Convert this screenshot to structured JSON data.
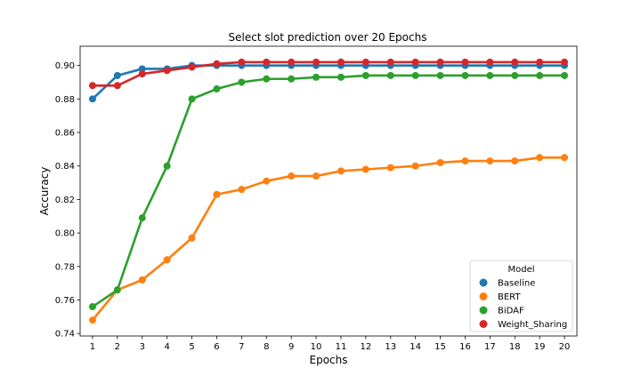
{
  "chart_data": {
    "type": "line",
    "title": "Select slot prediction over 20 Epochs",
    "xlabel": "Epochs",
    "ylabel": "Accuracy",
    "x": [
      1,
      2,
      3,
      4,
      5,
      6,
      7,
      8,
      9,
      10,
      11,
      12,
      13,
      14,
      15,
      16,
      17,
      18,
      19,
      20
    ],
    "xticks": [
      "1",
      "2",
      "3",
      "4",
      "5",
      "6",
      "7",
      "8",
      "9",
      "10",
      "11",
      "12",
      "13",
      "14",
      "15",
      "16",
      "17",
      "18",
      "19",
      "20"
    ],
    "ylim": [
      0.7385,
      0.9115
    ],
    "yticks": [
      0.74,
      0.76,
      0.78,
      0.8,
      0.82,
      0.84,
      0.86,
      0.88,
      0.9
    ],
    "ytick_labels": [
      "0.74",
      "0.76",
      "0.78",
      "0.80",
      "0.82",
      "0.84",
      "0.86",
      "0.88",
      "0.90"
    ],
    "grid": false,
    "legend": {
      "title": "Model",
      "placement": "bottom-right"
    },
    "series": [
      {
        "name": "Baseline",
        "color": "#1f77b4",
        "values": [
          0.88,
          0.894,
          0.898,
          0.898,
          0.9,
          0.9,
          0.9,
          0.9,
          0.9,
          0.9,
          0.9,
          0.9,
          0.9,
          0.9,
          0.9,
          0.9,
          0.9,
          0.9,
          0.9,
          0.9
        ]
      },
      {
        "name": "BERT",
        "color": "#ff7f0e",
        "values": [
          0.748,
          0.766,
          0.772,
          0.784,
          0.797,
          0.823,
          0.826,
          0.831,
          0.834,
          0.834,
          0.837,
          0.838,
          0.839,
          0.84,
          0.842,
          0.843,
          0.843,
          0.843,
          0.845,
          0.845
        ]
      },
      {
        "name": "BiDAF",
        "color": "#2ca02c",
        "values": [
          0.756,
          0.766,
          0.809,
          0.84,
          0.88,
          0.886,
          0.89,
          0.892,
          0.892,
          0.893,
          0.893,
          0.894,
          0.894,
          0.894,
          0.894,
          0.894,
          0.894,
          0.894,
          0.894,
          0.894
        ]
      },
      {
        "name": "Weight_Sharing",
        "color": "#d62728",
        "values": [
          0.888,
          0.888,
          0.895,
          0.897,
          0.899,
          0.901,
          0.902,
          0.902,
          0.902,
          0.902,
          0.902,
          0.902,
          0.902,
          0.902,
          0.902,
          0.902,
          0.902,
          0.902,
          0.902,
          0.902
        ]
      }
    ]
  }
}
